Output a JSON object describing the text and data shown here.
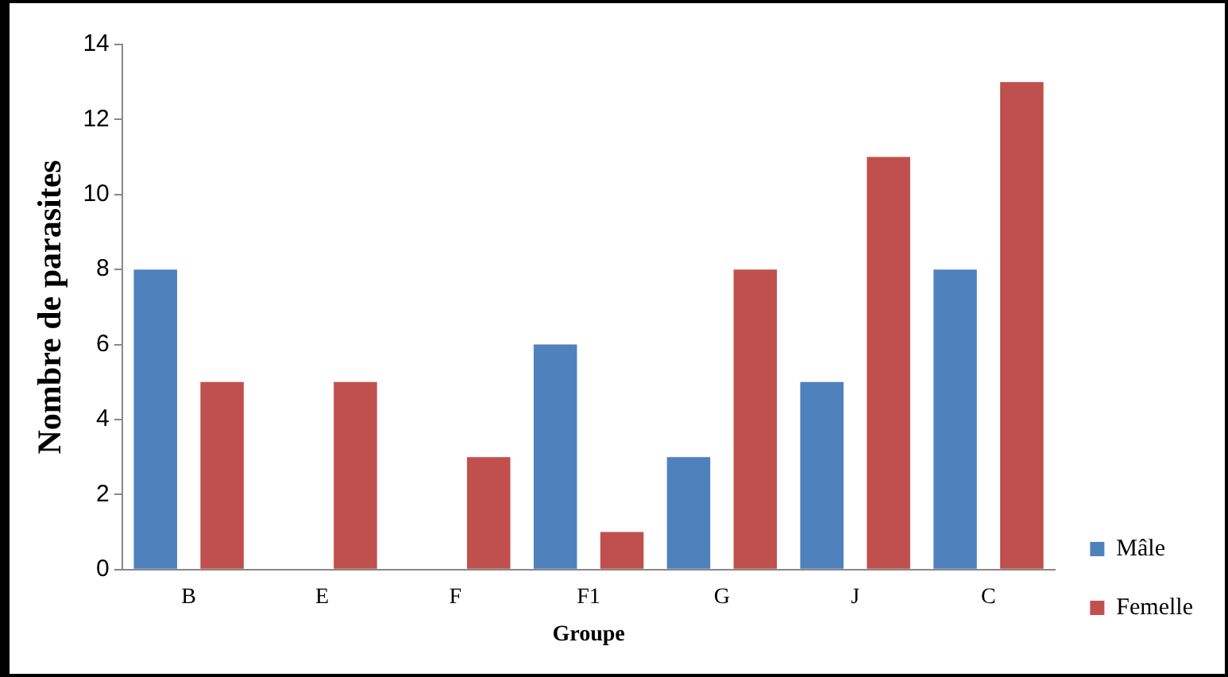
{
  "chart_data": {
    "type": "bar",
    "xlabel": "Groupe",
    "ylabel": "Nombre de parasites",
    "categories": [
      "B",
      "E",
      "F",
      "F1",
      "G",
      "J",
      "C"
    ],
    "series": [
      {
        "name": "Mâle",
        "color": "#4f81bd",
        "values": [
          8,
          0,
          0,
          6,
          3,
          5,
          8
        ]
      },
      {
        "name": "Femelle",
        "color": "#c0504d",
        "values": [
          5,
          5,
          3,
          1,
          8,
          11,
          13
        ]
      }
    ],
    "ylim": [
      0,
      14
    ],
    "yticks": [
      0,
      2,
      4,
      6,
      8,
      10,
      12,
      14
    ],
    "grid": false,
    "legend": "bottom right"
  }
}
